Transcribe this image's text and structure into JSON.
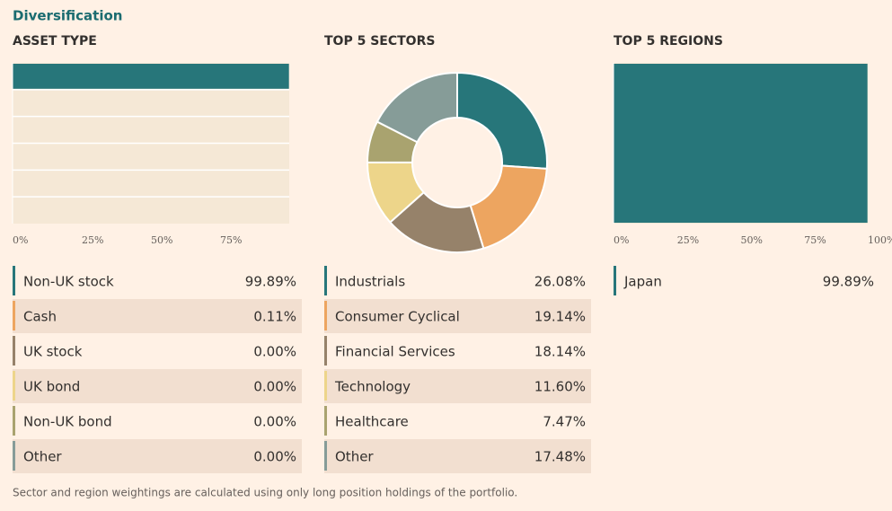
{
  "title": "Diversification",
  "footnote": "Sector and region weightings are calculated using only long position holdings of the portfolio.",
  "chart_data": [
    {
      "type": "bar",
      "orientation": "horizontal",
      "title": "ASSET TYPE",
      "categories": [
        "Non-UK stock",
        "Cash",
        "UK stock",
        "UK bond",
        "Non-UK bond",
        "Other"
      ],
      "values": [
        99.89,
        0.11,
        0,
        0,
        0,
        0
      ],
      "value_labels": [
        "99.89%",
        "0.11%",
        "0.00%",
        "0.00%",
        "0.00%",
        "0.00%"
      ],
      "colors": [
        "#27767a",
        "#eda560",
        "#96826a",
        "#edd58a",
        "#a9a36f",
        "#869c98"
      ],
      "xlim": [
        0,
        100
      ],
      "xticks": [
        {
          "value": 0,
          "label": "0%"
        },
        {
          "value": 25,
          "label": "25%"
        },
        {
          "value": 50,
          "label": "50%"
        },
        {
          "value": 75,
          "label": "75%"
        }
      ]
    },
    {
      "type": "donut",
      "title": "TOP 5 SECTORS",
      "categories": [
        "Industrials",
        "Consumer Cyclical",
        "Financial Services",
        "Technology",
        "Healthcare",
        "Other"
      ],
      "values": [
        26.08,
        19.14,
        18.14,
        11.6,
        7.47,
        17.48
      ],
      "value_labels": [
        "26.08%",
        "19.14%",
        "18.14%",
        "11.60%",
        "7.47%",
        "17.48%"
      ],
      "colors": [
        "#27767a",
        "#eda560",
        "#96826a",
        "#edd58a",
        "#a9a36f",
        "#869c98"
      ]
    },
    {
      "type": "bar",
      "orientation": "horizontal",
      "title": "TOP 5 REGIONS",
      "categories": [
        "Japan"
      ],
      "values": [
        99.89
      ],
      "value_labels": [
        "99.89%"
      ],
      "colors": [
        "#27767a"
      ],
      "xlim": [
        0,
        100
      ],
      "xticks": [
        {
          "value": 0,
          "label": "0%"
        },
        {
          "value": 25,
          "label": "25%"
        },
        {
          "value": 50,
          "label": "50%"
        },
        {
          "value": 75,
          "label": "75%"
        },
        {
          "value": 100,
          "label": "100%"
        }
      ]
    }
  ]
}
